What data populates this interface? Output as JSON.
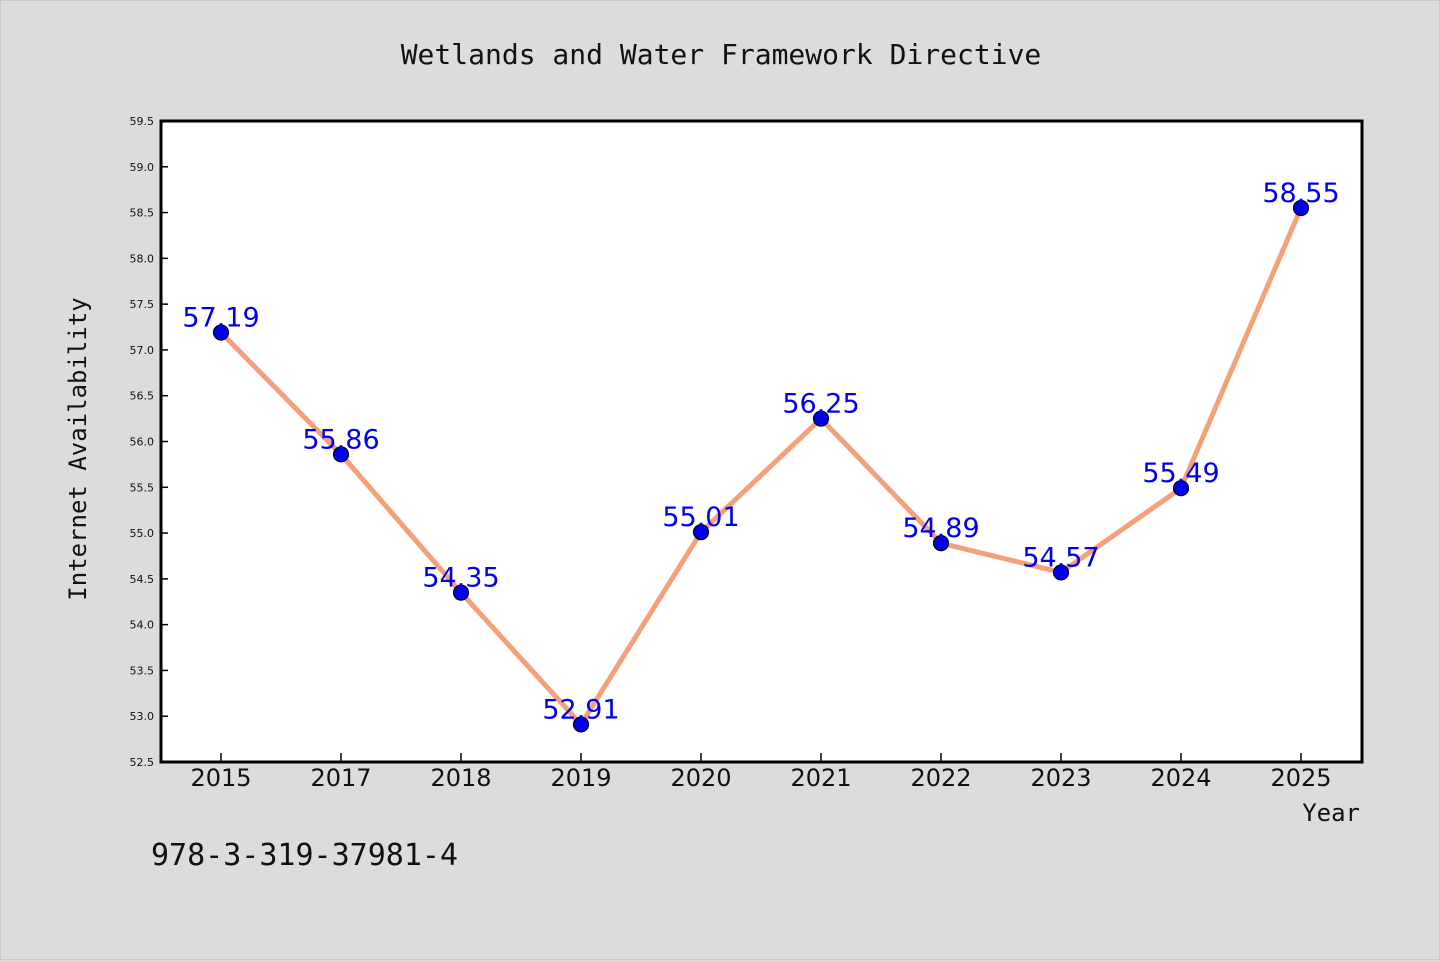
{
  "chart_data": {
    "type": "line",
    "title": "Wetlands and Water Framework Directive",
    "xlabel": "Year",
    "ylabel": "Internet Availability",
    "categories": [
      "2015",
      "2017",
      "2018",
      "2019",
      "2020",
      "2021",
      "2022",
      "2023",
      "2024",
      "2025"
    ],
    "series": [
      {
        "values": [
          57.19,
          55.86,
          54.35,
          52.91,
          55.01,
          56.25,
          54.89,
          54.57,
          55.49,
          58.55
        ]
      }
    ],
    "data_labels": [
      "57.19",
      "55.86",
      "54.35",
      "52.91",
      "55.01",
      "56.25",
      "54.89",
      "54.57",
      "55.49",
      "58.55"
    ],
    "ylim": [
      52.5,
      59.5
    ],
    "yticks": [
      "52.5",
      "53.0",
      "53.5",
      "54.0",
      "54.5",
      "55.0",
      "55.5",
      "56.0",
      "56.5",
      "57.0",
      "57.5",
      "58.0",
      "58.5",
      "59.0",
      "59.5"
    ],
    "grid": false,
    "line_color": "#f4a07a",
    "marker_color": "#0000ee",
    "label_color": "#0000ee"
  },
  "annotation": "978-3-319-37981-4"
}
